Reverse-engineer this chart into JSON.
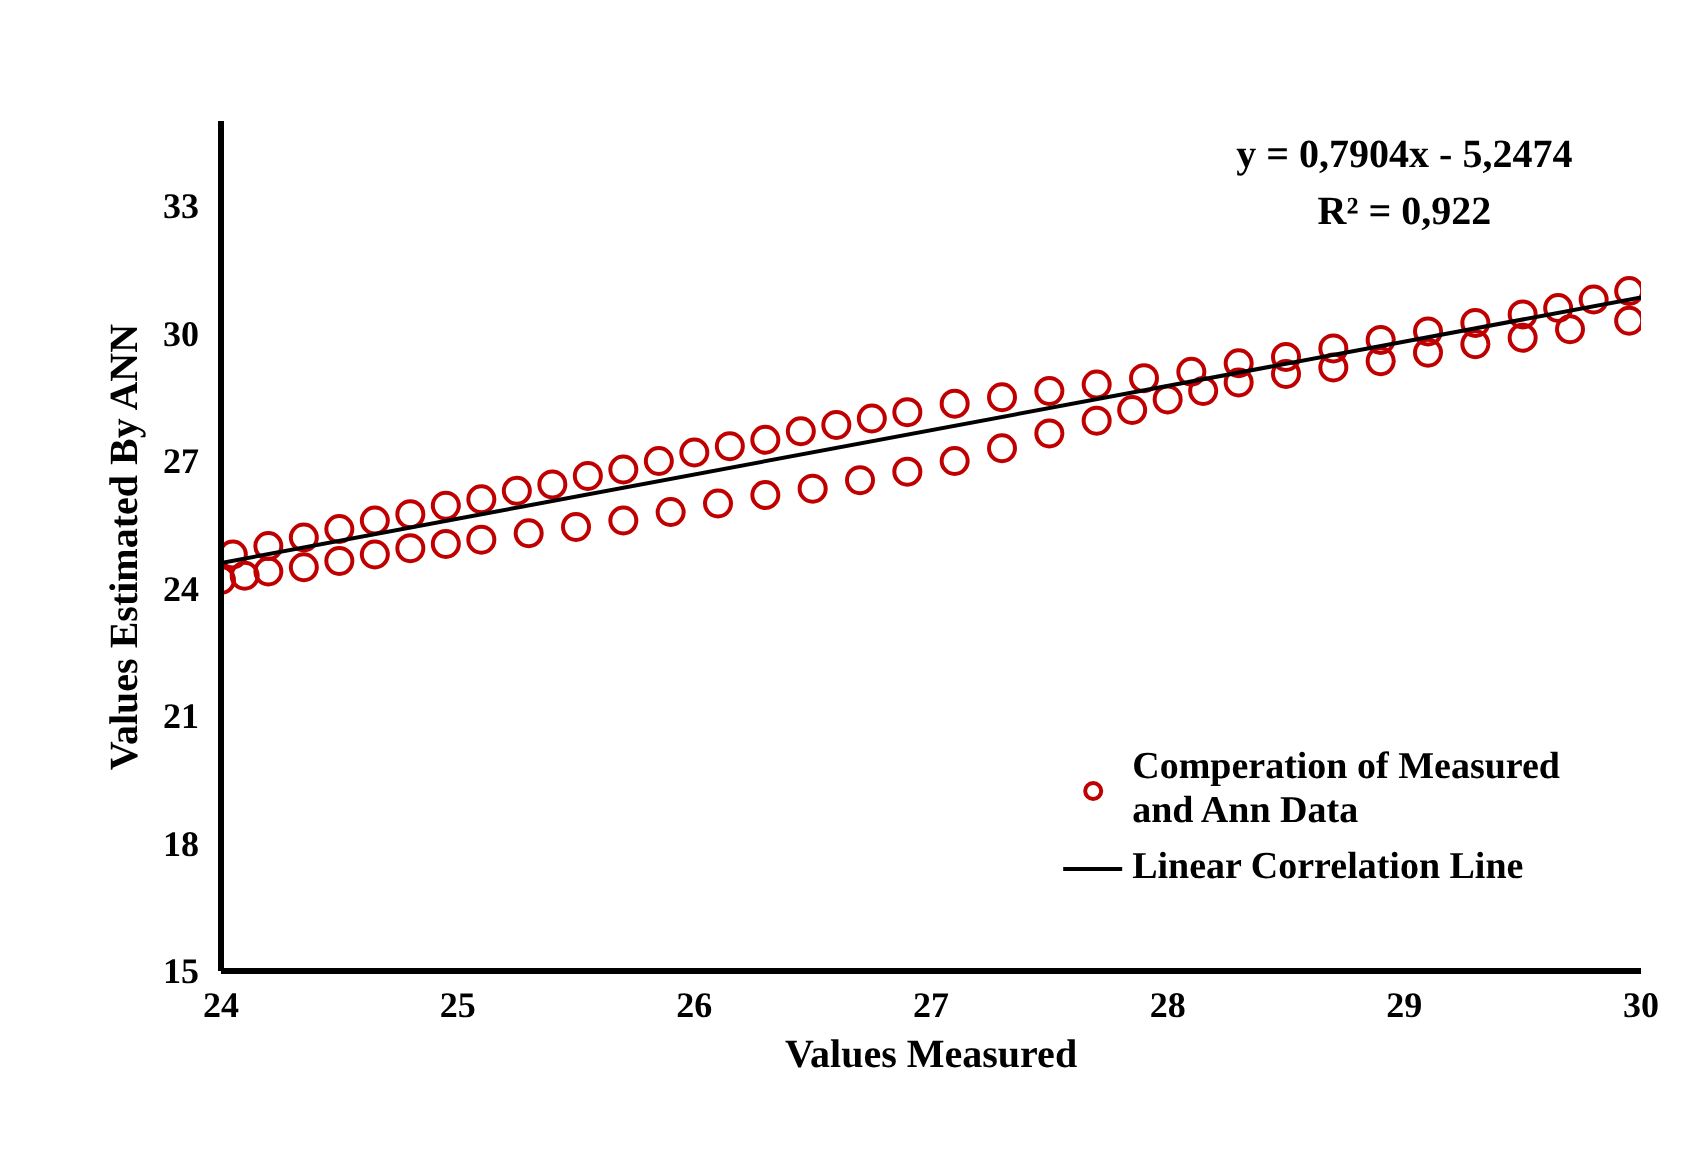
{
  "chart_data": {
    "type": "scatter",
    "xlabel": "Values Measured",
    "ylabel": "Values Estimated By ANN",
    "annotations": [
      "y = 0,7904x - 5,2474",
      "R² = 0,922"
    ],
    "series": [
      {
        "name": "Comperation of Measured and Ann Data",
        "marker": "circle",
        "color": "#c00000",
        "x": [
          24.05,
          24.2,
          24.35,
          24.5,
          24.65,
          24.8,
          24.95,
          25.1,
          25.25,
          25.4,
          25.55,
          25.7,
          25.85,
          26.0,
          26.15,
          26.3,
          26.45,
          26.6,
          26.75,
          26.9,
          27.1,
          27.3,
          27.5,
          27.7,
          27.9,
          28.1,
          28.3,
          28.5,
          28.7,
          28.9,
          29.1,
          29.3,
          29.5,
          29.65,
          29.8,
          29.95,
          24.0,
          24.1,
          24.2,
          24.35,
          24.5,
          24.65,
          24.8,
          24.95,
          25.1,
          25.3,
          25.5,
          25.7,
          25.9,
          26.1,
          26.3,
          26.5,
          26.7,
          26.9,
          27.1,
          27.3,
          27.5,
          27.7,
          27.85,
          28.0,
          28.15,
          28.3,
          28.5,
          28.7,
          28.9,
          29.1,
          29.3,
          29.5,
          29.7,
          29.95
        ],
        "values": [
          24.8,
          25.0,
          25.2,
          25.4,
          25.6,
          25.75,
          25.95,
          26.1,
          26.3,
          26.45,
          26.65,
          26.8,
          27.0,
          27.2,
          27.35,
          27.5,
          27.7,
          27.85,
          28.0,
          28.15,
          28.35,
          28.5,
          28.65,
          28.8,
          28.95,
          29.1,
          29.3,
          29.45,
          29.65,
          29.85,
          30.05,
          30.25,
          30.45,
          30.6,
          30.8,
          31.0,
          24.2,
          24.3,
          24.4,
          24.5,
          24.65,
          24.8,
          24.95,
          25.05,
          25.15,
          25.3,
          25.45,
          25.6,
          25.8,
          26.0,
          26.2,
          26.35,
          26.55,
          26.75,
          27.0,
          27.3,
          27.65,
          27.95,
          28.2,
          28.45,
          28.65,
          28.85,
          29.05,
          29.2,
          29.35,
          29.55,
          29.75,
          29.9,
          30.1,
          30.3
        ]
      },
      {
        "name": "Linear Correlation Line",
        "type": "line",
        "color": "#000000",
        "line_style": "solid",
        "x": [
          24,
          30
        ],
        "values": [
          24.6,
          30.85
        ]
      }
    ],
    "xlim": [
      24,
      30
    ],
    "xticks": [
      24,
      25,
      26,
      27,
      28,
      29,
      30
    ],
    "ylim": [
      15,
      35
    ],
    "yticks": [
      15,
      18,
      21,
      24,
      27,
      30,
      33
    ],
    "grid": false,
    "legend": "bottom right"
  }
}
